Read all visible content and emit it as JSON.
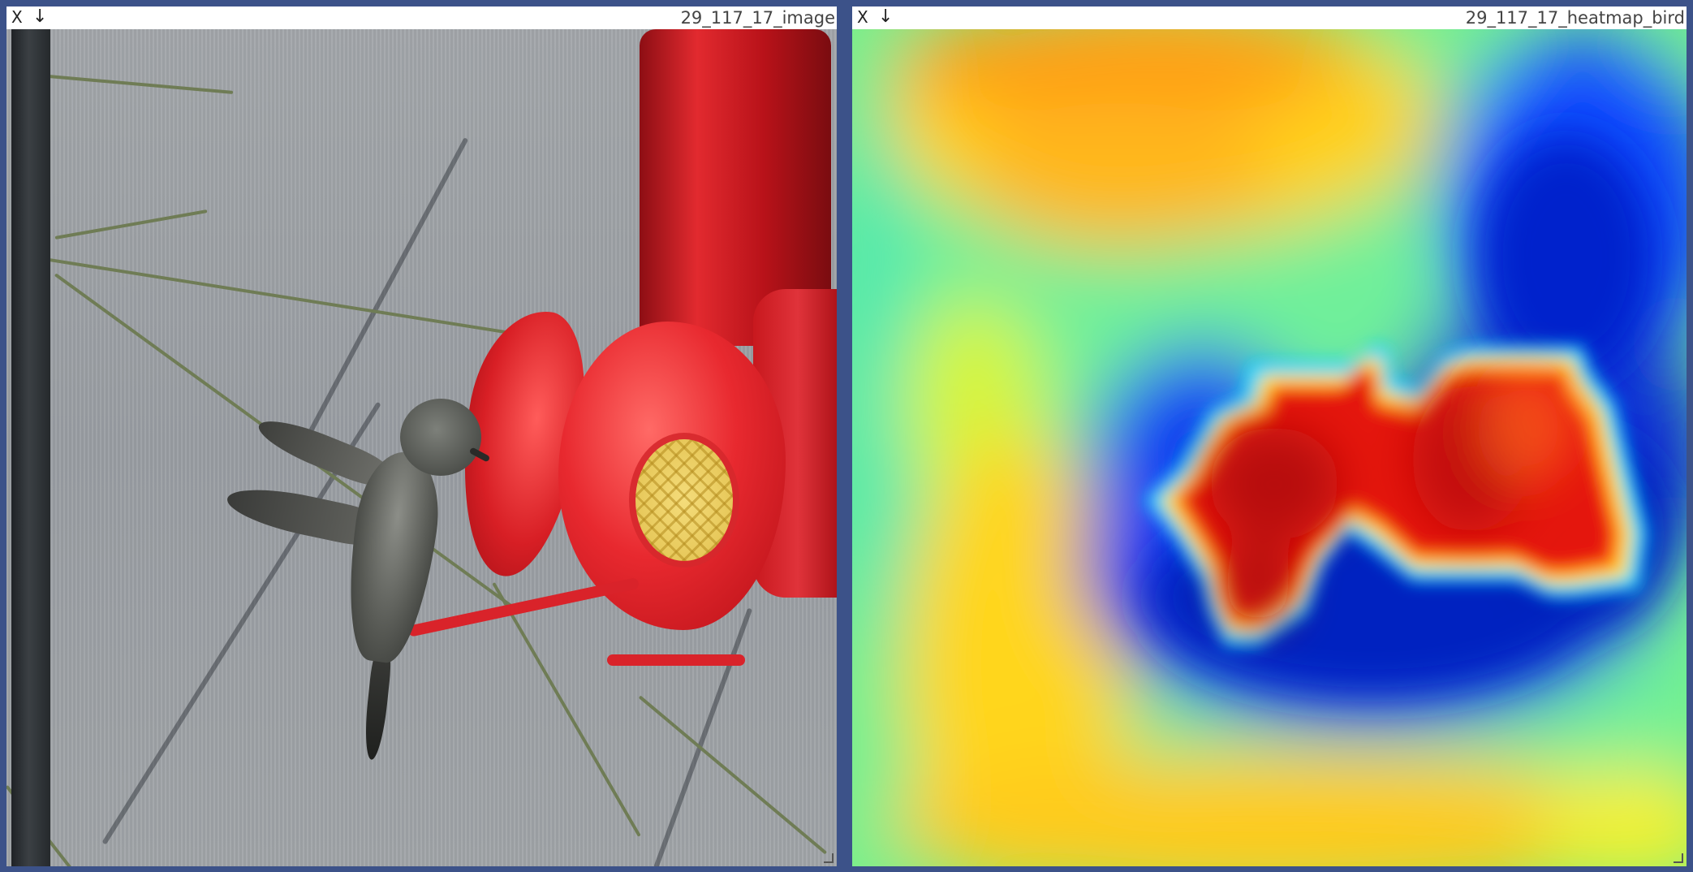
{
  "left_window": {
    "close_label": "X",
    "download_label": "↓",
    "title": "29_117_17_image"
  },
  "right_window": {
    "close_label": "X",
    "download_label": "↓",
    "title": "29_117_17_heatmap_bird"
  }
}
